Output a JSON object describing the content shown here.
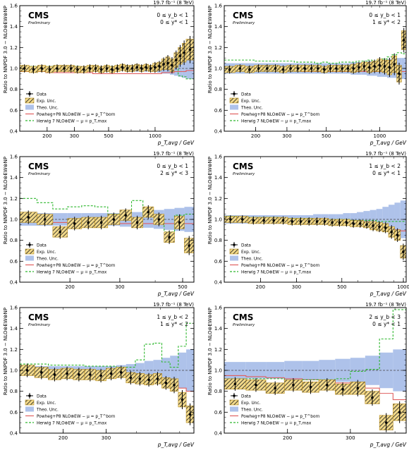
{
  "figure": {
    "ytitle": "Ratio to NNPDF 3.0 − NLO⊗EW⊗NP",
    "lumi": "19.7 fb⁻¹ (8 TeV)",
    "cms": "CMS",
    "preliminary": "Preliminary",
    "legend": {
      "data": "Data",
      "exp": "Exp. Unc.",
      "theo": "Theo. Unc.",
      "powheg": "Powheg+P8 NLO⊗EW − μ = p_T^born",
      "herwig": "Herwig 7 NLO⊗EW − μ = p_T,max"
    },
    "colors": {
      "theo_band": "#aec2ea",
      "exp_box": "#f2d98a",
      "exp_hatch": "#1a1a1a",
      "powheg": "#e06060",
      "herwig": "#2fb82f",
      "ref_line": "#444444"
    }
  },
  "chart_data": [
    {
      "type": "line",
      "region_line1": "0 ≤ y_b < 1",
      "region_line2": "0 ≤ y* < 1",
      "xlabel": "p_T,avg / GeV",
      "xscale": "log",
      "xlim": [
        133,
        1784
      ],
      "ylim": [
        0.4,
        1.6
      ],
      "yticks": [
        0.4,
        0.6,
        0.8,
        1.0,
        1.2,
        1.4,
        1.6
      ],
      "xticks": [
        200,
        300,
        500,
        1000
      ],
      "bins": [
        133,
        153,
        174,
        196,
        220,
        245,
        272,
        300,
        330,
        362,
        395,
        430,
        468,
        507,
        548,
        592,
        638,
        686,
        737,
        790,
        846,
        905,
        967,
        1032,
        1101,
        1172,
        1248,
        1327,
        1410,
        1497,
        1588,
        1784
      ],
      "data": [
        1.0,
        0.99,
        1.0,
        0.99,
        1.0,
        1.0,
        1.0,
        0.99,
        0.99,
        1.0,
        1.0,
        0.99,
        1.0,
        0.99,
        1.0,
        1.01,
        1.0,
        1.0,
        1.01,
        1.0,
        1.01,
        1.0,
        1.01,
        1.02,
        1.04,
        1.05,
        1.03,
        1.08,
        1.12,
        1.15,
        1.18
      ],
      "exp_unc": [
        0.03,
        0.03,
        0.03,
        0.03,
        0.03,
        0.03,
        0.03,
        0.03,
        0.03,
        0.03,
        0.03,
        0.03,
        0.03,
        0.03,
        0.03,
        0.03,
        0.03,
        0.03,
        0.03,
        0.03,
        0.03,
        0.03,
        0.04,
        0.04,
        0.05,
        0.06,
        0.06,
        0.07,
        0.08,
        0.09,
        0.1
      ],
      "theo_unc": [
        0.02,
        0.02,
        0.02,
        0.02,
        0.02,
        0.02,
        0.02,
        0.02,
        0.02,
        0.02,
        0.02,
        0.02,
        0.02,
        0.02,
        0.02,
        0.02,
        0.02,
        0.03,
        0.03,
        0.03,
        0.03,
        0.03,
        0.03,
        0.04,
        0.05,
        0.05,
        0.06,
        0.07,
        0.08,
        0.09,
        0.1
      ],
      "powheg": [
        0.97,
        0.97,
        0.97,
        0.96,
        0.96,
        0.96,
        0.96,
        0.96,
        0.96,
        0.96,
        0.95,
        0.95,
        0.95,
        0.95,
        0.95,
        0.95,
        0.95,
        0.95,
        0.95,
        0.95,
        0.95,
        0.95,
        0.95,
        0.95,
        0.96,
        0.96,
        0.96,
        0.97,
        0.97,
        0.97,
        0.98
      ],
      "herwig": [
        1.02,
        1.02,
        1.02,
        1.02,
        1.01,
        1.01,
        1.01,
        1.02,
        1.01,
        1.01,
        1.01,
        1.01,
        1.02,
        1.02,
        1.01,
        1.01,
        1.01,
        1.01,
        1.01,
        1.01,
        1.02,
        1.02,
        1.02,
        1.02,
        1.03,
        1.03,
        1.02,
        1.02,
        0.93,
        0.92,
        0.9
      ]
    },
    {
      "type": "line",
      "region_line1": "0 ≤ y_b < 1",
      "region_line2": "1 ≤ y* < 2",
      "xlabel": "p_T,avg / GeV",
      "xscale": "log",
      "xlim": [
        133,
        1410
      ],
      "ylim": [
        0.4,
        1.6
      ],
      "yticks": [
        0.4,
        0.6,
        0.8,
        1.0,
        1.2,
        1.4,
        1.6
      ],
      "xticks": [
        200,
        300,
        500,
        1000
      ],
      "bins": [
        133,
        153,
        174,
        196,
        220,
        245,
        272,
        300,
        330,
        362,
        395,
        430,
        468,
        507,
        548,
        592,
        638,
        686,
        737,
        790,
        846,
        905,
        967,
        1032,
        1101,
        1172,
        1248,
        1327,
        1410
      ],
      "data": [
        0.99,
        1.0,
        0.99,
        1.0,
        1.0,
        1.0,
        0.99,
        1.0,
        1.0,
        1.0,
        1.0,
        1.0,
        0.99,
        1.0,
        1.0,
        1.0,
        1.0,
        1.0,
        1.01,
        1.02,
        1.01,
        1.02,
        1.03,
        1.02,
        1.01,
        1.04,
        0.95,
        1.27
      ],
      "exp_unc": [
        0.03,
        0.03,
        0.03,
        0.03,
        0.03,
        0.03,
        0.03,
        0.03,
        0.03,
        0.03,
        0.03,
        0.03,
        0.03,
        0.03,
        0.03,
        0.03,
        0.03,
        0.04,
        0.04,
        0.04,
        0.05,
        0.05,
        0.06,
        0.06,
        0.07,
        0.08,
        0.08,
        0.09
      ],
      "theo_unc": [
        0.05,
        0.05,
        0.05,
        0.05,
        0.05,
        0.05,
        0.05,
        0.05,
        0.05,
        0.05,
        0.05,
        0.05,
        0.05,
        0.05,
        0.05,
        0.05,
        0.05,
        0.06,
        0.06,
        0.06,
        0.07,
        0.07,
        0.08,
        0.08,
        0.09,
        0.09,
        0.1,
        0.1
      ],
      "powheg": [
        0.98,
        0.98,
        0.98,
        0.98,
        0.98,
        0.98,
        0.98,
        0.98,
        0.98,
        0.97,
        0.97,
        0.97,
        0.97,
        0.97,
        0.97,
        0.97,
        0.97,
        0.97,
        0.97,
        0.97,
        0.97,
        0.97,
        0.97,
        0.97,
        0.97,
        0.97,
        0.97,
        0.97
      ],
      "herwig": [
        1.08,
        1.08,
        1.08,
        1.07,
        1.07,
        1.07,
        1.07,
        1.07,
        1.06,
        1.06,
        1.06,
        1.05,
        1.06,
        1.05,
        1.05,
        1.06,
        1.06,
        1.06,
        1.07,
        1.07,
        1.08,
        1.07,
        1.08,
        1.09,
        1.11,
        1.13,
        1.15,
        1.14
      ]
    },
    {
      "type": "line",
      "region_line1": "0 ≤ y_b < 1",
      "region_line2": "2 ≤ y* < 3",
      "xlabel": "p_T,avg / GeV",
      "xscale": "log",
      "xlim": [
        133,
        548
      ],
      "ylim": [
        0.4,
        1.6
      ],
      "yticks": [
        0.4,
        0.6,
        0.8,
        1.0,
        1.2,
        1.4,
        1.6
      ],
      "xticks": [
        200,
        300,
        500
      ],
      "bins": [
        133,
        153,
        174,
        196,
        220,
        245,
        272,
        300,
        330,
        362,
        395,
        430,
        468,
        507,
        548
      ],
      "data": [
        1.02,
        1.0,
        0.88,
        0.96,
        0.97,
        0.97,
        1.0,
        1.04,
        0.97,
        1.07,
        1.0,
        0.83,
        0.97,
        0.75
      ],
      "exp_unc": [
        0.05,
        0.05,
        0.05,
        0.05,
        0.05,
        0.05,
        0.05,
        0.05,
        0.05,
        0.05,
        0.05,
        0.05,
        0.06,
        0.07
      ],
      "theo_unc": [
        0.06,
        0.06,
        0.06,
        0.06,
        0.06,
        0.06,
        0.06,
        0.07,
        0.07,
        0.08,
        0.09,
        0.1,
        0.11,
        0.12
      ],
      "powheg": [
        0.98,
        0.97,
        0.97,
        0.97,
        0.97,
        0.96,
        0.96,
        0.96,
        0.96,
        0.96,
        0.96,
        0.96,
        0.96,
        0.96
      ],
      "herwig": [
        1.2,
        1.16,
        1.1,
        1.12,
        1.13,
        1.12,
        1.05,
        1.06,
        1.18,
        1.04,
        1.02,
        0.88,
        1.04,
        1.05
      ]
    },
    {
      "type": "line",
      "region_line1": "1 ≤ y_b < 2",
      "region_line2": "0 ≤ y* < 1",
      "xlabel": "p_T,avg / GeV",
      "xscale": "log",
      "xlim": [
        133,
        1032
      ],
      "ylim": [
        0.4,
        1.6
      ],
      "yticks": [
        0.4,
        0.6,
        0.8,
        1.0,
        1.2,
        1.4,
        1.6
      ],
      "xticks": [
        200,
        300,
        500,
        1000
      ],
      "bins": [
        133,
        153,
        174,
        196,
        220,
        245,
        272,
        300,
        330,
        362,
        395,
        430,
        468,
        507,
        548,
        592,
        638,
        686,
        737,
        790,
        846,
        905,
        967,
        1032
      ],
      "data": [
        1.0,
        1.0,
        0.99,
        0.99,
        0.99,
        0.99,
        0.98,
        0.98,
        0.98,
        0.98,
        0.98,
        0.97,
        0.97,
        0.97,
        0.96,
        0.96,
        0.95,
        0.94,
        0.93,
        0.92,
        0.88,
        0.85,
        0.69
      ],
      "exp_unc": [
        0.03,
        0.03,
        0.03,
        0.03,
        0.03,
        0.03,
        0.03,
        0.03,
        0.03,
        0.03,
        0.03,
        0.03,
        0.03,
        0.03,
        0.03,
        0.03,
        0.03,
        0.04,
        0.04,
        0.04,
        0.05,
        0.05,
        0.06
      ],
      "theo_unc": [
        0.04,
        0.04,
        0.04,
        0.04,
        0.04,
        0.04,
        0.04,
        0.04,
        0.04,
        0.05,
        0.05,
        0.05,
        0.05,
        0.06,
        0.06,
        0.07,
        0.08,
        0.09,
        0.1,
        0.12,
        0.14,
        0.16,
        0.18
      ],
      "powheg": [
        0.98,
        0.98,
        0.98,
        0.98,
        0.98,
        0.97,
        0.97,
        0.97,
        0.97,
        0.96,
        0.96,
        0.96,
        0.96,
        0.95,
        0.95,
        0.95,
        0.94,
        0.94,
        0.93,
        0.92,
        0.91,
        0.9,
        0.89
      ],
      "herwig": [
        1.03,
        1.02,
        1.02,
        1.02,
        1.02,
        1.01,
        1.01,
        1.01,
        1.01,
        1.0,
        1.0,
        1.0,
        1.0,
        1.0,
        0.99,
        0.99,
        0.99,
        0.99,
        0.98,
        0.98,
        0.98,
        0.98,
        0.98
      ]
    },
    {
      "type": "line",
      "region_line1": "1 ≤ y_b < 2",
      "region_line2": "1 ≤ y* < 2",
      "xlabel": "p_T,avg / GeV",
      "xscale": "log",
      "xlim": [
        133,
        686
      ],
      "ylim": [
        0.4,
        1.6
      ],
      "yticks": [
        0.4,
        0.6,
        0.8,
        1.0,
        1.2,
        1.4,
        1.6
      ],
      "xticks": [
        200,
        300
      ],
      "bins": [
        133,
        153,
        174,
        196,
        220,
        245,
        272,
        300,
        330,
        362,
        395,
        430,
        468,
        507,
        548,
        592,
        638,
        686
      ],
      "data": [
        1.0,
        0.98,
        0.96,
        0.97,
        0.96,
        0.96,
        0.95,
        0.97,
        0.98,
        0.93,
        0.92,
        0.91,
        0.92,
        0.88,
        0.86,
        0.72,
        0.58
      ],
      "exp_unc": [
        0.05,
        0.05,
        0.05,
        0.05,
        0.05,
        0.05,
        0.05,
        0.05,
        0.05,
        0.05,
        0.05,
        0.05,
        0.05,
        0.05,
        0.06,
        0.07,
        0.08
      ],
      "theo_unc": [
        0.04,
        0.04,
        0.04,
        0.04,
        0.04,
        0.04,
        0.04,
        0.04,
        0.05,
        0.06,
        0.07,
        0.09,
        0.1,
        0.12,
        0.14,
        0.17,
        0.2
      ],
      "powheg": [
        0.98,
        0.98,
        0.97,
        0.97,
        0.97,
        0.96,
        0.96,
        0.96,
        0.95,
        0.95,
        0.94,
        0.93,
        0.92,
        0.91,
        0.88,
        0.83,
        0.8
      ],
      "herwig": [
        1.06,
        1.06,
        1.05,
        1.05,
        1.05,
        1.04,
        1.04,
        1.04,
        1.03,
        1.03,
        1.1,
        1.25,
        1.26,
        1.08,
        1.03,
        1.23,
        1.45
      ]
    },
    {
      "type": "line",
      "region_line1": "2 ≤ y_b < 3",
      "region_line2": "0 ≤ y* < 1",
      "xlabel": "p_T,avg / GeV",
      "xscale": "log",
      "xlim": [
        133,
        430
      ],
      "ylim": [
        0.4,
        1.6
      ],
      "yticks": [
        0.4,
        0.6,
        0.8,
        1.0,
        1.2,
        1.4,
        1.6
      ],
      "xticks": [
        200,
        300
      ],
      "bins": [
        133,
        153,
        174,
        196,
        220,
        245,
        272,
        300,
        330,
        362,
        395,
        430
      ],
      "data": [
        0.87,
        0.86,
        0.83,
        0.86,
        0.84,
        0.86,
        0.82,
        0.83,
        0.74,
        0.5,
        0.6
      ],
      "exp_unc": [
        0.05,
        0.05,
        0.05,
        0.05,
        0.05,
        0.05,
        0.05,
        0.06,
        0.06,
        0.07,
        0.08
      ],
      "theo_unc": [
        0.08,
        0.08,
        0.08,
        0.09,
        0.09,
        0.1,
        0.11,
        0.12,
        0.14,
        0.17,
        0.2
      ],
      "powheg": [
        0.95,
        0.94,
        0.93,
        0.92,
        0.91,
        0.9,
        0.88,
        0.86,
        0.83,
        0.78,
        0.72
      ],
      "herwig": [
        0.92,
        0.92,
        0.92,
        0.9,
        0.91,
        0.91,
        0.92,
        0.99,
        1.01,
        1.3,
        1.58
      ]
    }
  ]
}
